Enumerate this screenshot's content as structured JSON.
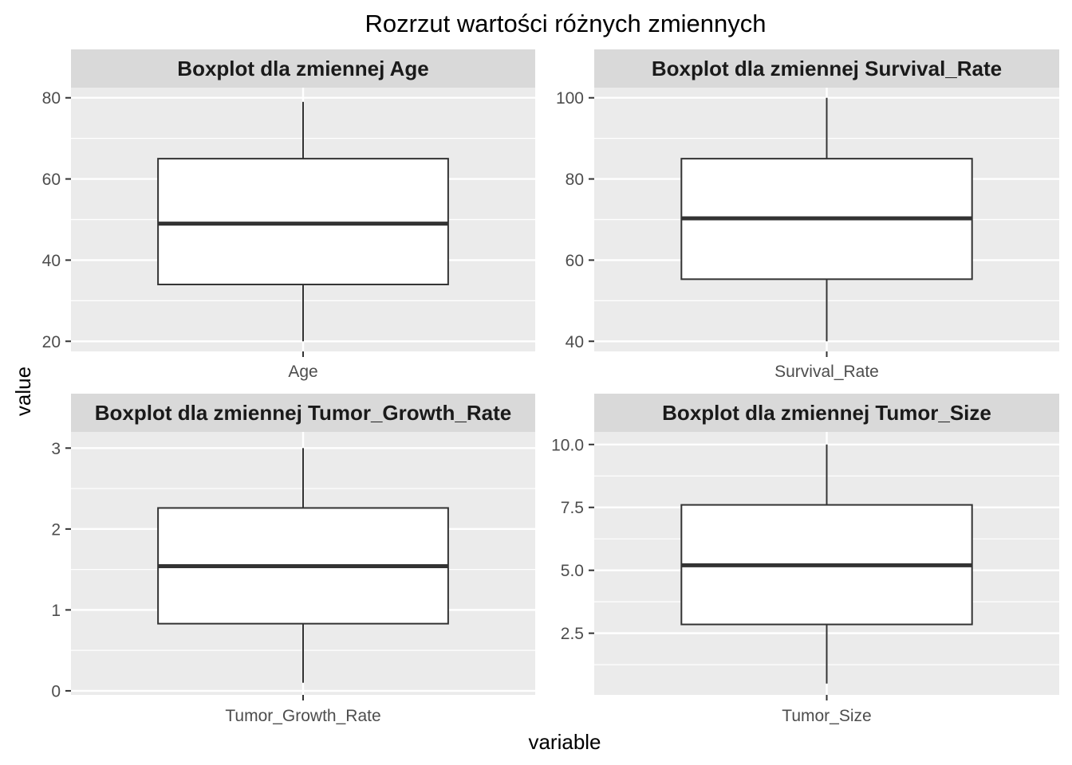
{
  "chart_data": {
    "type": "boxplot",
    "title": "Rozrzut wartości różnych zmiennych",
    "xlabel": "variable",
    "ylabel": "value",
    "grid": true,
    "panels": [
      {
        "strip": "Boxplot dla zmiennej Age",
        "category": "Age",
        "ylim": [
          17.5,
          82.5
        ],
        "yticks": [
          20,
          40,
          60,
          80
        ],
        "yminor": [
          30,
          50,
          70
        ],
        "box": {
          "min": 20,
          "q1": 34,
          "median": 49,
          "q3": 65,
          "max": 79
        }
      },
      {
        "strip": "Boxplot dla zmiennej Survival_Rate",
        "category": "Survival_Rate",
        "ylim": [
          37.5,
          102.5
        ],
        "yticks": [
          40,
          60,
          80,
          100
        ],
        "yminor": [
          50,
          70,
          90
        ],
        "box": {
          "min": 40,
          "q1": 55.3,
          "median": 70.3,
          "q3": 85,
          "max": 100
        }
      },
      {
        "strip": "Boxplot dla zmiennej Tumor_Growth_Rate",
        "category": "Tumor_Growth_Rate",
        "ylim": [
          -0.05,
          3.2
        ],
        "yticks": [
          0,
          1,
          2,
          3
        ],
        "yminor": [
          0.5,
          1.5,
          2.5
        ],
        "box": {
          "min": 0.1,
          "q1": 0.83,
          "median": 1.54,
          "q3": 2.26,
          "max": 3
        }
      },
      {
        "strip": "Boxplot dla zmiennej Tumor_Size",
        "category": "Tumor_Size",
        "ylim": [
          0.05,
          10.5
        ],
        "yticks": [
          2.5,
          5.0,
          7.5,
          10.0
        ],
        "yticklabels": [
          "2.5",
          "5.0",
          "7.5",
          "10.0"
        ],
        "yminor": [
          1.25,
          3.75,
          6.25,
          8.75
        ],
        "box": {
          "min": 0.5,
          "q1": 2.85,
          "median": 5.2,
          "q3": 7.6,
          "max": 10
        }
      }
    ]
  },
  "colors": {
    "panel_bg": "#ebebeb",
    "strip_bg": "#d9d9d9",
    "grid": "#ffffff",
    "box_fill": "#ffffff",
    "box_line": "#333333",
    "tick": "#333333",
    "tick_label": "#4d4d4d"
  }
}
